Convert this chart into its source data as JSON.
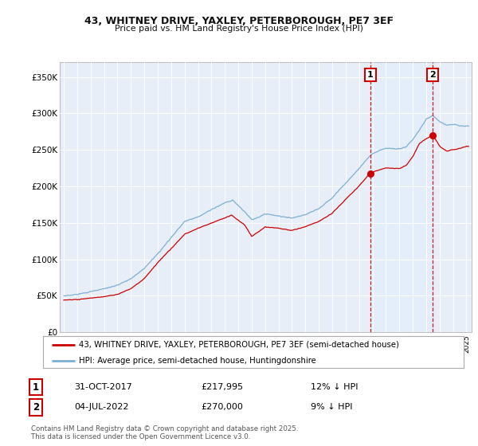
{
  "title1": "43, WHITNEY DRIVE, YAXLEY, PETERBOROUGH, PE7 3EF",
  "title2": "Price paid vs. HM Land Registry's House Price Index (HPI)",
  "ylabel_ticks": [
    "£0",
    "£50K",
    "£100K",
    "£150K",
    "£200K",
    "£250K",
    "£300K",
    "£350K"
  ],
  "ytick_vals": [
    0,
    50000,
    100000,
    150000,
    200000,
    250000,
    300000,
    350000
  ],
  "ylim": [
    0,
    370000
  ],
  "xlim_start": 1994.7,
  "xlim_end": 2025.4,
  "hpi_color": "#7bafd4",
  "price_color": "#cc0000",
  "shade_color": "#ddeeff",
  "vline_color": "#cc0000",
  "annotation_box_color": "#cc0000",
  "grid_color": "#ffffff",
  "bg_color": "#e8eef8",
  "legend_label_price": "43, WHITNEY DRIVE, YAXLEY, PETERBOROUGH, PE7 3EF (semi-detached house)",
  "legend_label_hpi": "HPI: Average price, semi-detached house, Huntingdonshire",
  "sale1_year": 2017.833,
  "sale1_price": 217995,
  "sale2_year": 2022.5,
  "sale2_price": 270000,
  "sale1_text": "31-OCT-2017",
  "sale1_amount": "£217,995",
  "sale1_hpi_text": "12% ↓ HPI",
  "sale2_text": "04-JUL-2022",
  "sale2_amount": "£270,000",
  "sale2_hpi_text": "9% ↓ HPI",
  "footer": "Contains HM Land Registry data © Crown copyright and database right 2025.\nThis data is licensed under the Open Government Licence v3.0."
}
